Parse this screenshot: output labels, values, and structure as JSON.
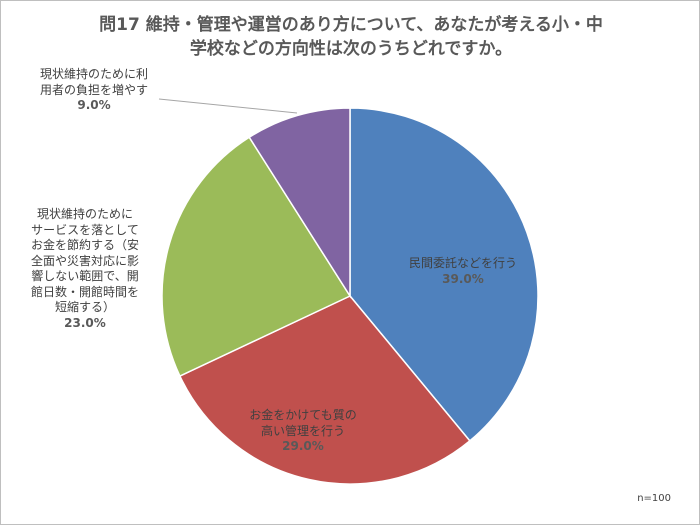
{
  "chart_data": {
    "type": "pie",
    "title_lines": [
      "問17 維持・管理や運営のあり方について、あなたが考える小・中",
      "学校などの方向性は次のうちどれですか。"
    ],
    "slices": [
      {
        "label_lines": [
          "民間委託などを行う"
        ],
        "value": 39.0,
        "value_text": "39.0%",
        "color": "#4f81bd"
      },
      {
        "label_lines": [
          "お金をかけても質の",
          "高い管理を行う"
        ],
        "value": 29.0,
        "value_text": "29.0%",
        "color": "#c0504d"
      },
      {
        "label_lines": [
          "現状維持のために",
          "サービスを落として",
          "お金を節約する（安",
          "全面や災害対応に影",
          "響しない範囲で、開",
          "館日数・開館時間を",
          "短縮する）"
        ],
        "value": 23.0,
        "value_text": "23.0%",
        "color": "#9bbb59"
      },
      {
        "label_lines": [
          "現状維持のために利",
          "用者の負担を増やす"
        ],
        "value": 9.0,
        "value_text": "9.0%",
        "color": "#8064a2"
      }
    ],
    "start_angle_deg": 0,
    "direction": "clockwise",
    "note": "n=100"
  }
}
